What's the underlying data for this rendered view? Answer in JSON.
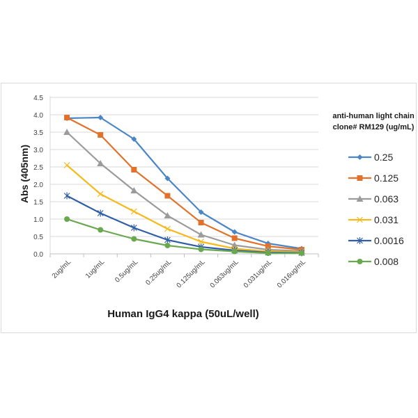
{
  "chart_data": {
    "type": "line",
    "title": "",
    "xlabel": "Human IgG4 kappa (50uL/well)",
    "ylabel": "Abs (405nm)",
    "ylim": [
      0,
      4.5
    ],
    "yticks": [
      "0.0",
      "0.5",
      "1.0",
      "1.5",
      "2.0",
      "2.5",
      "3.0",
      "3.5",
      "4.0",
      "4.5"
    ],
    "grid": true,
    "legend_position": "right",
    "legend_title": [
      "anti-human light chain",
      "clone# RM129 (ug/mL)"
    ],
    "categories": [
      "2ug/mL",
      "1ug/mL",
      "0.5ug/mL",
      "0.25ug/mL",
      "0.125ug/mL",
      "0.063ug/mL",
      "0.031ug/mL",
      "0.016ug/mL"
    ],
    "series": [
      {
        "name": "0.25",
        "color": "#4a86c5",
        "marker": "diamond",
        "values": [
          3.9,
          3.92,
          3.3,
          2.17,
          1.2,
          0.63,
          0.3,
          0.15
        ]
      },
      {
        "name": "0.125",
        "color": "#e0722b",
        "marker": "square",
        "values": [
          3.92,
          3.42,
          2.42,
          1.67,
          0.9,
          0.45,
          0.22,
          0.12
        ]
      },
      {
        "name": "0.063",
        "color": "#9b9b9b",
        "marker": "triangle",
        "values": [
          3.5,
          2.6,
          1.82,
          1.1,
          0.55,
          0.25,
          0.12,
          0.08
        ]
      },
      {
        "name": "0.031",
        "color": "#f5b91b",
        "marker": "x",
        "values": [
          2.55,
          1.72,
          1.22,
          0.72,
          0.35,
          0.15,
          0.07,
          0.05
        ]
      },
      {
        "name": "0.0016",
        "color": "#2f5ea6",
        "marker": "star",
        "values": [
          1.67,
          1.17,
          0.75,
          0.4,
          0.2,
          0.1,
          0.04,
          0.03
        ]
      },
      {
        "name": "0.008",
        "color": "#6aa84f",
        "marker": "circle",
        "values": [
          1.0,
          0.69,
          0.43,
          0.24,
          0.13,
          0.07,
          0.02,
          0.02
        ]
      }
    ]
  }
}
